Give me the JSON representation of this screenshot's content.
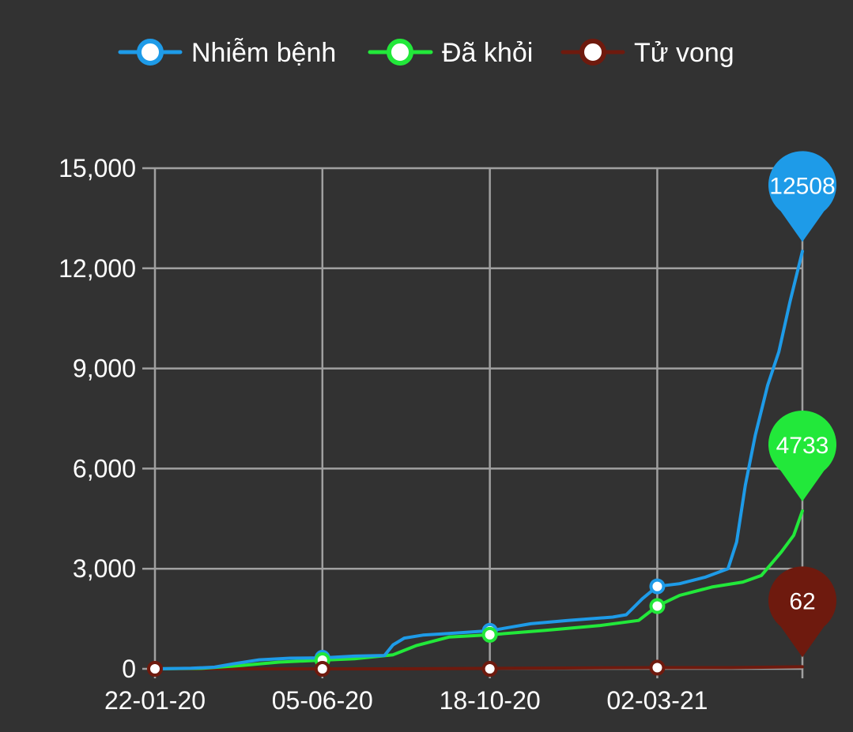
{
  "colors": {
    "background": "#323232",
    "grid": "#a0a0a0",
    "infected": "#1e9be8",
    "recovered": "#22e83a",
    "deaths": "#6e1a0e"
  },
  "chart_data": {
    "type": "line",
    "title": "",
    "xlabel": "",
    "ylabel": "",
    "ylim": [
      0,
      15000
    ],
    "grid": true,
    "legend_position": "top",
    "y_ticks": [
      0,
      3000,
      6000,
      9000,
      12000,
      15000
    ],
    "y_tick_labels": [
      "0",
      "3,000",
      "6,000",
      "9,000",
      "12,000",
      "15,000"
    ],
    "x_tick_labels": [
      "22-01-20",
      "05-06-20",
      "18-10-20",
      "02-03-21"
    ],
    "x_tick_dates": [
      "2020-01-22",
      "2020-06-05",
      "2020-10-18",
      "2021-03-02"
    ],
    "x_end": "2021-06-27",
    "series": [
      {
        "name": "Nhiễm bệnh",
        "color": "#1e9be8",
        "end_label": "12508",
        "x": [
          "2020-01-22",
          "2020-02-20",
          "2020-03-10",
          "2020-03-25",
          "2020-04-15",
          "2020-05-10",
          "2020-06-05",
          "2020-07-01",
          "2020-07-25",
          "2020-08-01",
          "2020-08-10",
          "2020-08-25",
          "2020-09-15",
          "2020-10-18",
          "2020-11-20",
          "2020-12-20",
          "2021-01-25",
          "2021-02-05",
          "2021-02-18",
          "2021-03-02",
          "2021-03-20",
          "2021-04-10",
          "2021-04-28",
          "2021-05-05",
          "2021-05-12",
          "2021-05-20",
          "2021-05-30",
          "2021-06-08",
          "2021-06-17",
          "2021-06-27"
        ],
        "y": [
          0,
          16,
          50,
          150,
          270,
          320,
          330,
          380,
          400,
          720,
          920,
          1010,
          1060,
          1140,
          1350,
          1450,
          1550,
          1620,
          2100,
          2470,
          2550,
          2750,
          3000,
          3800,
          5500,
          7000,
          8500,
          9500,
          11000,
          12508
        ]
      },
      {
        "name": "Đã khỏi",
        "color": "#22e83a",
        "end_label": "4733",
        "x": [
          "2020-01-22",
          "2020-03-01",
          "2020-04-01",
          "2020-05-01",
          "2020-06-05",
          "2020-07-01",
          "2020-08-01",
          "2020-08-20",
          "2020-09-15",
          "2020-10-18",
          "2020-12-01",
          "2021-01-15",
          "2021-02-15",
          "2021-03-02",
          "2021-03-20",
          "2021-04-15",
          "2021-05-10",
          "2021-05-25",
          "2021-06-10",
          "2021-06-20",
          "2021-06-27"
        ],
        "y": [
          0,
          16,
          100,
          200,
          260,
          300,
          420,
          700,
          950,
          1020,
          1150,
          1300,
          1450,
          1880,
          2200,
          2450,
          2600,
          2800,
          3500,
          4000,
          4733
        ]
      },
      {
        "name": "Tử vong",
        "color": "#6e1a0e",
        "end_label": "62",
        "x": [
          "2020-01-22",
          "2020-07-30",
          "2021-03-02",
          "2021-05-01",
          "2021-06-27"
        ],
        "y": [
          0,
          0,
          35,
          35,
          62
        ]
      }
    ],
    "markers": [
      {
        "series": 0,
        "x": "2020-06-05",
        "y": 330
      },
      {
        "series": 0,
        "x": "2020-10-18",
        "y": 1140
      },
      {
        "series": 0,
        "x": "2021-03-02",
        "y": 2470
      },
      {
        "series": 1,
        "x": "2020-06-05",
        "y": 260
      },
      {
        "series": 1,
        "x": "2020-10-18",
        "y": 1020
      },
      {
        "series": 1,
        "x": "2021-03-02",
        "y": 1880
      },
      {
        "series": 2,
        "x": "2020-01-22",
        "y": 0
      },
      {
        "series": 2,
        "x": "2020-06-05",
        "y": 0
      },
      {
        "series": 2,
        "x": "2020-10-18",
        "y": 0
      },
      {
        "series": 2,
        "x": "2021-03-02",
        "y": 35
      }
    ]
  }
}
